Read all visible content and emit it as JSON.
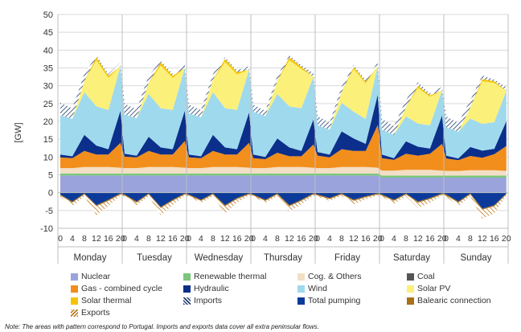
{
  "chart_data": {
    "type": "area",
    "ylabel": "[GW]",
    "ylim": [
      -10,
      50
    ],
    "yticks": [
      -10,
      -5,
      0,
      5,
      10,
      15,
      20,
      25,
      30,
      35,
      40,
      45,
      50
    ],
    "days": [
      "Monday",
      "Tuesday",
      "Wednesday",
      "Thursday",
      "Friday",
      "Saturday",
      "Sunday"
    ],
    "hour_ticks": [
      "0",
      "4",
      "8",
      "12",
      "16",
      "20"
    ],
    "legend": [
      {
        "name": "Nuclear",
        "color": "#9aa3dc",
        "pattern": false
      },
      {
        "name": "Renewable thermal",
        "color": "#7bc67b",
        "pattern": false
      },
      {
        "name": "Cog. & Others",
        "color": "#f3dfc6",
        "pattern": false
      },
      {
        "name": "Coal",
        "color": "#555555",
        "pattern": false
      },
      {
        "name": "Gas - combined cycle",
        "color": "#f28e1c",
        "pattern": false
      },
      {
        "name": "Hydraulic",
        "color": "#0b2f8a",
        "pattern": false
      },
      {
        "name": "Wind",
        "color": "#9fd9ee",
        "pattern": false
      },
      {
        "name": "Solar PV",
        "color": "#fbf07a",
        "pattern": false
      },
      {
        "name": "Solar thermal",
        "color": "#f5c400",
        "pattern": false
      },
      {
        "name": "Imports",
        "color": "#1f3a6e",
        "pattern": true
      },
      {
        "name": "Total pumping",
        "color": "#0b3a9a",
        "pattern": false
      },
      {
        "name": "Balearic connection",
        "color": "#a9701a",
        "pattern": false
      },
      {
        "name": "Exports",
        "color": "#b9781a",
        "pattern": true
      }
    ],
    "series": [
      {
        "name": "Nuclear",
        "hourly": [
          [
            4.8,
            4.8,
            4.8,
            4.8,
            4.8,
            4.8
          ],
          [
            4.8,
            4.8,
            4.8,
            4.8,
            4.8,
            4.8
          ],
          [
            4.8,
            4.8,
            4.8,
            4.8,
            4.8,
            4.8
          ],
          [
            4.8,
            4.8,
            4.8,
            4.8,
            4.8,
            4.8
          ],
          [
            4.8,
            4.8,
            4.8,
            4.8,
            4.8,
            4.8
          ],
          [
            4.2,
            4.2,
            4.2,
            4.2,
            4.2,
            4.2
          ],
          [
            4.2,
            4.2,
            4.2,
            4.2,
            4.2,
            4.2
          ]
        ]
      },
      {
        "name": "Renewable thermal",
        "hourly": [
          [
            0.6,
            0.6,
            0.6,
            0.6,
            0.6,
            0.6
          ],
          [
            0.6,
            0.6,
            0.6,
            0.6,
            0.6,
            0.6
          ],
          [
            0.6,
            0.6,
            0.6,
            0.6,
            0.6,
            0.6
          ],
          [
            0.6,
            0.6,
            0.6,
            0.6,
            0.6,
            0.6
          ],
          [
            0.6,
            0.6,
            0.6,
            0.6,
            0.6,
            0.6
          ],
          [
            0.6,
            0.6,
            0.6,
            0.6,
            0.6,
            0.6
          ],
          [
            0.6,
            0.6,
            0.6,
            0.6,
            0.6,
            0.6
          ]
        ]
      },
      {
        "name": "Cog. & Others",
        "hourly": [
          [
            1.5,
            1.5,
            1.8,
            1.8,
            1.8,
            1.6
          ],
          [
            1.5,
            1.5,
            1.8,
            1.8,
            1.8,
            1.6
          ],
          [
            1.5,
            1.5,
            1.8,
            1.8,
            1.8,
            1.6
          ],
          [
            1.5,
            1.5,
            1.8,
            1.8,
            1.8,
            1.6
          ],
          [
            1.5,
            1.5,
            1.8,
            1.8,
            1.8,
            1.6
          ],
          [
            1.4,
            1.4,
            1.6,
            1.6,
            1.6,
            1.4
          ],
          [
            1.3,
            1.3,
            1.5,
            1.5,
            1.5,
            1.3
          ]
        ]
      },
      {
        "name": "Gas - combined cycle",
        "hourly": [
          [
            3.0,
            2.8,
            4.5,
            3.5,
            3.5,
            7.0
          ],
          [
            3.2,
            3.0,
            4.5,
            3.5,
            3.5,
            7.5
          ],
          [
            3.0,
            2.8,
            4.5,
            3.5,
            3.5,
            7.0
          ],
          [
            2.8,
            2.5,
            4.0,
            3.0,
            3.0,
            6.5
          ],
          [
            3.5,
            3.0,
            5.0,
            4.5,
            4.5,
            12.0
          ],
          [
            3.5,
            3.0,
            4.5,
            4.0,
            4.5,
            7.5
          ],
          [
            3.5,
            3.0,
            4.0,
            3.5,
            4.5,
            7.0
          ]
        ]
      },
      {
        "name": "Hydraulic",
        "hourly": [
          [
            0.8,
            0.5,
            4.5,
            2.5,
            1.5,
            9.0
          ],
          [
            0.8,
            0.5,
            4.0,
            2.0,
            1.5,
            8.5
          ],
          [
            0.8,
            0.5,
            4.5,
            2.0,
            1.5,
            8.5
          ],
          [
            1.0,
            0.6,
            4.0,
            2.5,
            1.5,
            7.0
          ],
          [
            1.0,
            0.8,
            5.0,
            3.5,
            2.0,
            8.5
          ],
          [
            1.0,
            0.5,
            3.5,
            2.5,
            1.5,
            8.0
          ],
          [
            0.8,
            0.5,
            2.5,
            2.0,
            1.5,
            7.0
          ]
        ]
      },
      {
        "name": "Wind",
        "hourly": [
          [
            11.0,
            10.5,
            12.0,
            11.0,
            11.0,
            12.5
          ],
          [
            11.0,
            10.5,
            12.0,
            11.0,
            11.0,
            12.0
          ],
          [
            11.5,
            11.0,
            12.0,
            11.0,
            11.0,
            12.0
          ],
          [
            12.0,
            11.5,
            12.5,
            11.5,
            12.0,
            12.0
          ],
          [
            7.5,
            7.0,
            8.0,
            7.5,
            7.0,
            8.0
          ],
          [
            7.0,
            6.5,
            7.0,
            6.5,
            6.5,
            7.0
          ],
          [
            8.0,
            7.5,
            8.0,
            7.5,
            7.5,
            8.5
          ]
        ]
      },
      {
        "name": "Solar PV",
        "hourly": [
          [
            0,
            0,
            3.0,
            13.0,
            9.0,
            0
          ],
          [
            0,
            0,
            3.0,
            12.0,
            9.0,
            0
          ],
          [
            0,
            0,
            3.5,
            13.0,
            10.0,
            0
          ],
          [
            0,
            0,
            3.5,
            13.0,
            11.0,
            0
          ],
          [
            0,
            0,
            3.0,
            12.0,
            10.0,
            0
          ],
          [
            0,
            0,
            2.5,
            10.0,
            8.0,
            0
          ],
          [
            0,
            0,
            3.0,
            12.0,
            11.0,
            0
          ]
        ]
      },
      {
        "name": "Solar thermal",
        "hourly": [
          [
            0,
            0,
            0.1,
            0.8,
            0.6,
            0
          ],
          [
            0,
            0,
            0.1,
            0.8,
            0.6,
            0
          ],
          [
            0,
            0,
            0.1,
            0.8,
            0.6,
            0
          ],
          [
            0,
            0,
            0.1,
            0.8,
            0.6,
            0
          ],
          [
            0,
            0,
            0.1,
            0.6,
            0.4,
            0
          ],
          [
            0,
            0,
            0.1,
            0.6,
            0.4,
            0
          ],
          [
            0,
            0,
            0.1,
            0.6,
            0.4,
            0
          ]
        ]
      },
      {
        "name": "Imports",
        "hourly": [
          [
            3.5,
            3.0,
            2.0,
            0.5,
            0.5,
            1.0
          ],
          [
            3.0,
            2.5,
            2.0,
            0.5,
            0.5,
            1.0
          ],
          [
            2.5,
            2.0,
            1.5,
            0.5,
            0.5,
            1.0
          ],
          [
            2.0,
            1.5,
            1.5,
            0.5,
            0.5,
            1.0
          ],
          [
            2.5,
            2.0,
            1.5,
            0.5,
            0.5,
            1.0
          ],
          [
            3.0,
            2.5,
            2.0,
            1.0,
            0.5,
            1.0
          ],
          [
            3.0,
            2.5,
            2.0,
            1.0,
            0.5,
            1.0
          ]
        ]
      },
      {
        "name": "Total pumping",
        "hourly": [
          [
            -0.5,
            -2.5,
            -0.2,
            -3.5,
            -2.0,
            -0.2
          ],
          [
            -0.5,
            -2.5,
            -0.2,
            -4.0,
            -2.0,
            -0.2
          ],
          [
            -0.5,
            -2.0,
            -0.2,
            -3.5,
            -1.5,
            -0.2
          ],
          [
            -0.5,
            -2.0,
            -0.2,
            -3.5,
            -2.0,
            -0.2
          ],
          [
            -0.5,
            -1.5,
            -0.2,
            -2.0,
            -1.0,
            -0.2
          ],
          [
            -0.5,
            -2.0,
            -0.2,
            -2.5,
            -1.5,
            -0.2
          ],
          [
            -0.5,
            -2.5,
            -0.2,
            -4.5,
            -3.5,
            -0.2
          ]
        ]
      },
      {
        "name": "Balearic connection",
        "hourly": [
          [
            -0.3,
            -0.3,
            -0.3,
            -0.3,
            -0.3,
            -0.3
          ],
          [
            -0.3,
            -0.3,
            -0.3,
            -0.3,
            -0.3,
            -0.3
          ],
          [
            -0.3,
            -0.3,
            -0.3,
            -0.3,
            -0.3,
            -0.3
          ],
          [
            -0.3,
            -0.3,
            -0.3,
            -0.3,
            -0.3,
            -0.3
          ],
          [
            -0.3,
            -0.3,
            -0.3,
            -0.3,
            -0.3,
            -0.3
          ],
          [
            -0.3,
            -0.3,
            -0.3,
            -0.3,
            -0.3,
            -0.3
          ],
          [
            -0.3,
            -0.3,
            -0.3,
            -0.3,
            -0.3,
            -0.3
          ]
        ]
      },
      {
        "name": "Exports",
        "hourly": [
          [
            -0.3,
            -1.0,
            -0.5,
            -2.5,
            -1.5,
            -0.3
          ],
          [
            -0.3,
            -0.8,
            -0.5,
            -2.0,
            -1.2,
            -0.3
          ],
          [
            -0.3,
            -0.6,
            -0.5,
            -2.0,
            -1.0,
            -0.3
          ],
          [
            -0.3,
            -0.6,
            -0.4,
            -1.5,
            -1.0,
            -0.3
          ],
          [
            -0.3,
            -0.5,
            -0.4,
            -1.0,
            -0.6,
            -0.3
          ],
          [
            -0.3,
            -0.8,
            -0.5,
            -1.5,
            -1.0,
            -0.3
          ],
          [
            -0.3,
            -1.0,
            -0.5,
            -2.5,
            -2.0,
            -0.3
          ]
        ]
      }
    ]
  },
  "note": "Note: The areas with pattern correspond to Portugal. Imports and exports data cover all extra peninsular flows."
}
